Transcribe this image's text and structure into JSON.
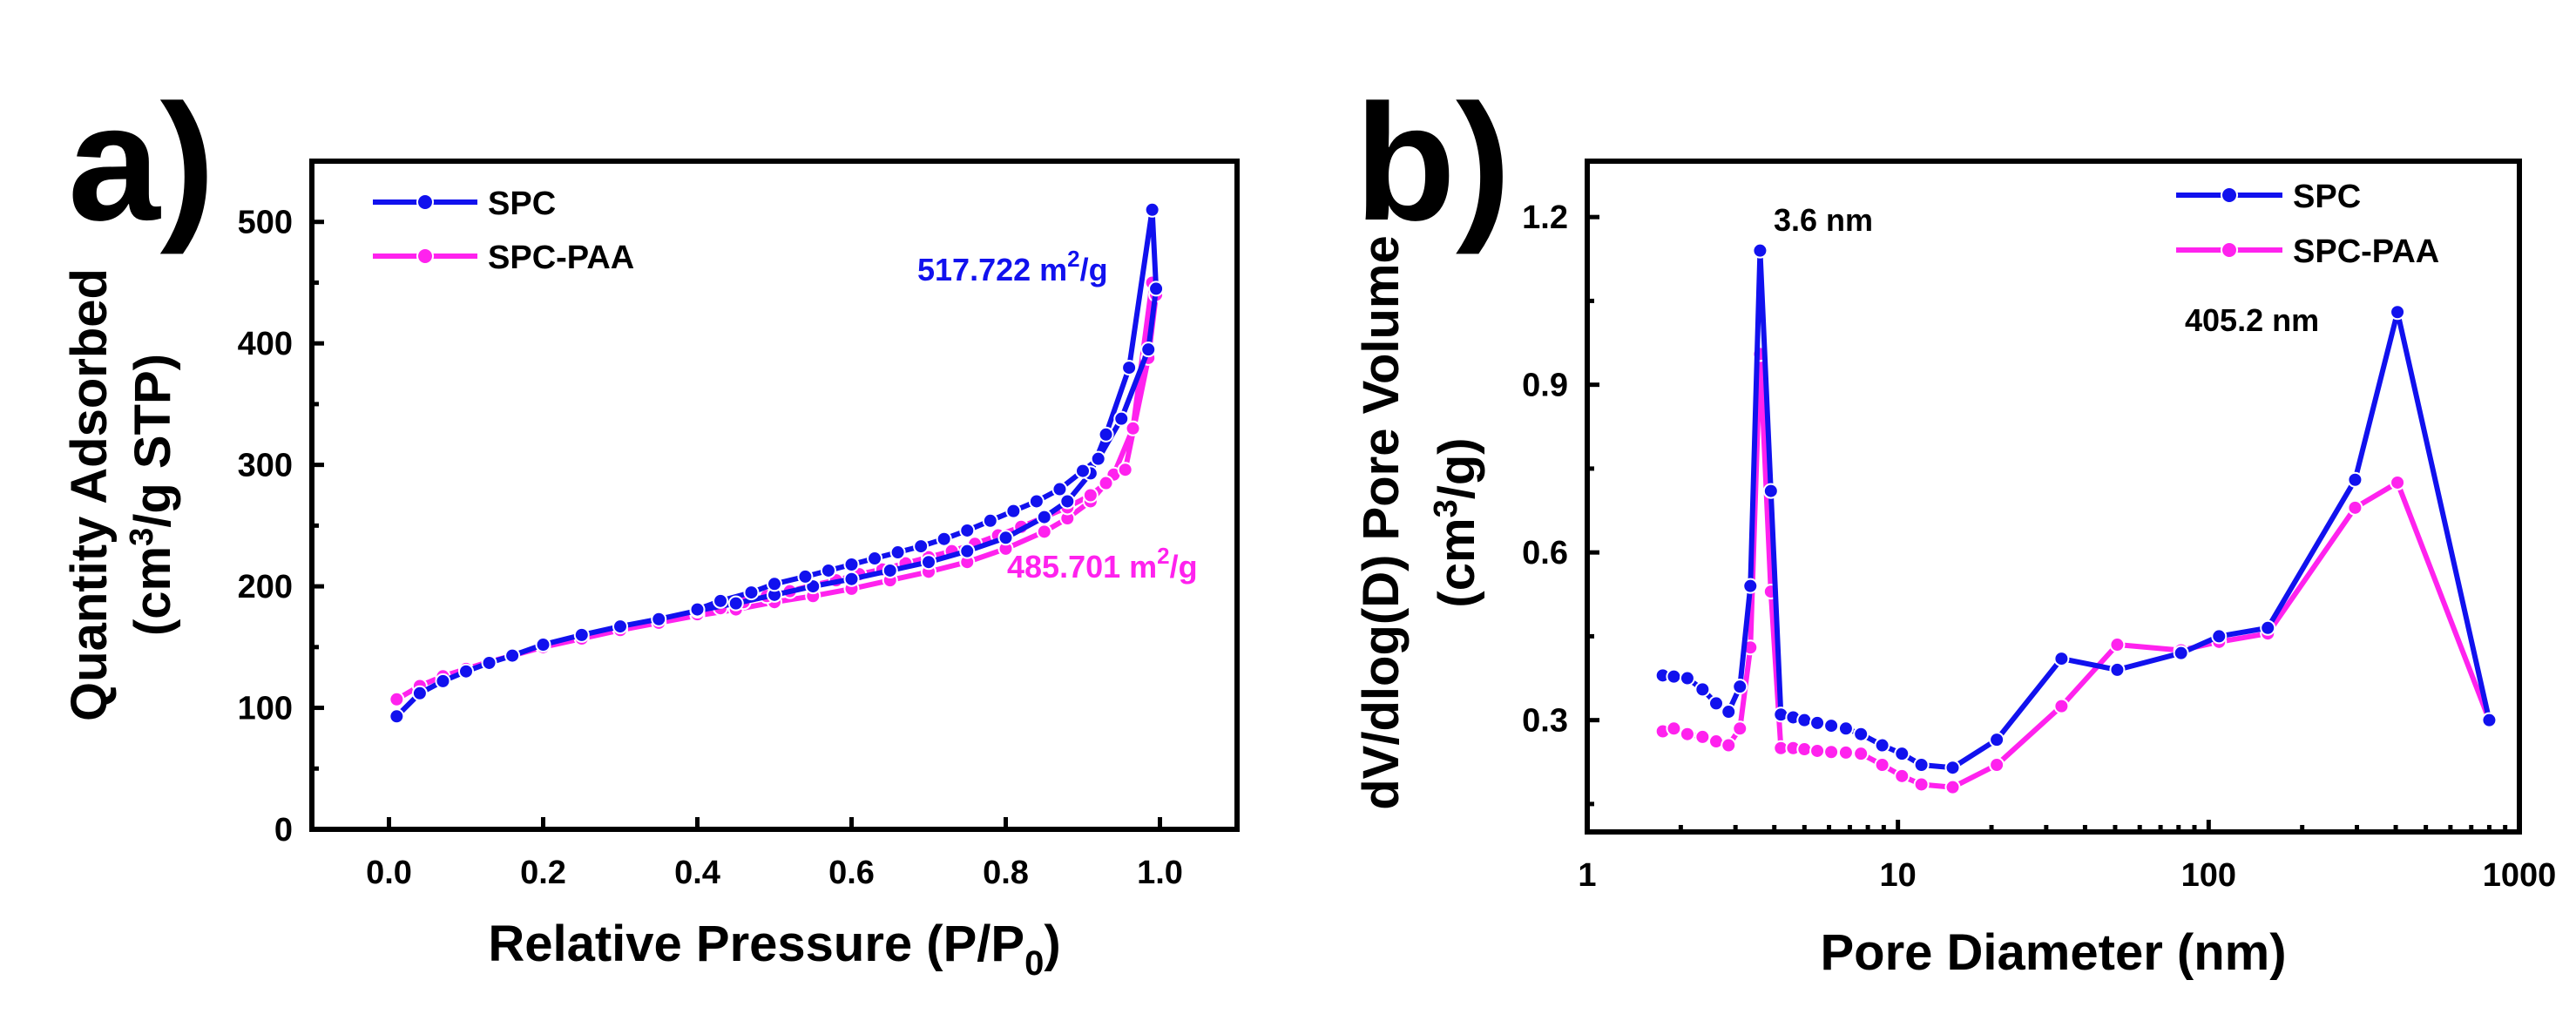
{
  "colors": {
    "spc": "#1111ee",
    "spc_paa": "#ff22ee",
    "axis": "#000000"
  },
  "chart_data": [
    {
      "id": "a",
      "panel_label": "a)",
      "type": "line",
      "title": "",
      "xlabel": {
        "main": "Relative Pressure (P/P",
        "sub": "0",
        "tail": ")"
      },
      "ylabel": {
        "line1": "Quantity Adsorbed",
        "line2_pre": "(cm",
        "line2_sup": "3",
        "line2_post": "/g STP)"
      },
      "xlim": [
        -0.1,
        1.1
      ],
      "ylim": [
        0,
        550
      ],
      "xticks": [
        0.0,
        0.2,
        0.4,
        0.6,
        0.8,
        1.0
      ],
      "xtick_labels": [
        "0.0",
        "0.2",
        "0.4",
        "0.6",
        "0.8",
        "1.0"
      ],
      "yticks": [
        0,
        100,
        200,
        300,
        400,
        500
      ],
      "ytick_labels": [
        "0",
        "100",
        "200",
        "300",
        "400",
        "500"
      ],
      "legend": [
        "SPC",
        "SPC-PAA"
      ],
      "annotations": [
        {
          "pre": "517.722 m",
          "sup": "2",
          "post": "/g",
          "series": "spc"
        },
        {
          "pre": "485.701 m",
          "sup": "2",
          "post": "/g",
          "series": "spc_paa"
        }
      ],
      "series": [
        {
          "name": "SPC",
          "color_key": "spc",
          "x": [
            0.01,
            0.04,
            0.07,
            0.1,
            0.13,
            0.16,
            0.2,
            0.25,
            0.3,
            0.35,
            0.4,
            0.45,
            0.5,
            0.55,
            0.6,
            0.65,
            0.7,
            0.75,
            0.8,
            0.85,
            0.88,
            0.91,
            0.93,
            0.96,
            0.99,
            0.995,
            0.985,
            0.95,
            0.92,
            0.9,
            0.87,
            0.84,
            0.81,
            0.78,
            0.75,
            0.72,
            0.69,
            0.66,
            0.63,
            0.6,
            0.57,
            0.54,
            0.5,
            0.47,
            0.43,
            0.4
          ],
          "y": [
            93,
            112,
            122,
            130,
            137,
            143,
            152,
            160,
            167,
            173,
            180,
            186,
            193,
            200,
            206,
            213,
            220,
            229,
            240,
            257,
            270,
            293,
            325,
            380,
            510,
            445,
            395,
            338,
            305,
            295,
            280,
            270,
            262,
            254,
            246,
            239,
            233,
            228,
            223,
            218,
            213,
            208,
            202,
            195,
            188,
            181
          ]
        },
        {
          "name": "SPC-PAA",
          "color_key": "spc_paa",
          "x": [
            0.01,
            0.04,
            0.07,
            0.1,
            0.13,
            0.16,
            0.2,
            0.25,
            0.3,
            0.35,
            0.4,
            0.45,
            0.5,
            0.55,
            0.6,
            0.65,
            0.7,
            0.75,
            0.8,
            0.85,
            0.88,
            0.91,
            0.94,
            0.965,
            0.99,
            0.995,
            0.985,
            0.955,
            0.93,
            0.91,
            0.88,
            0.85,
            0.82,
            0.79,
            0.76,
            0.73,
            0.7,
            0.67,
            0.64,
            0.61,
            0.58,
            0.55,
            0.52,
            0.49,
            0.46,
            0.43,
            0.4
          ],
          "y": [
            107,
            118,
            126,
            132,
            138,
            143,
            150,
            157,
            164,
            170,
            176,
            181,
            187,
            192,
            198,
            205,
            212,
            220,
            231,
            245,
            256,
            270,
            292,
            330,
            450,
            440,
            388,
            296,
            285,
            275,
            265,
            257,
            249,
            242,
            235,
            229,
            224,
            219,
            214,
            210,
            205,
            201,
            196,
            192,
            187,
            182,
            177
          ]
        }
      ]
    },
    {
      "id": "b",
      "panel_label": "b)",
      "type": "line",
      "title": "",
      "xscale": "log",
      "xlabel": {
        "main": "Pore Diameter (nm)"
      },
      "ylabel": {
        "line1": "dV/dlog(D) Pore Volume",
        "line2_pre": "(cm",
        "line2_sup": "3",
        "line2_post": "/g)"
      },
      "xlim": [
        1,
        1000
      ],
      "ylim": [
        0.1,
        1.3
      ],
      "xticks": [
        1,
        10,
        100,
        1000
      ],
      "xtick_labels": [
        "1",
        "10",
        "100",
        "1000"
      ],
      "yticks": [
        0.3,
        0.6,
        0.9,
        1.2
      ],
      "ytick_labels": [
        "0.3",
        "0.6",
        "0.9",
        "1.2"
      ],
      "legend": [
        "SPC",
        "SPC-PAA"
      ],
      "annotations": [
        {
          "text": "3.6 nm",
          "x": 3.6,
          "y": 1.14
        },
        {
          "text": "405.2 nm",
          "x": 405.2,
          "y": 1.03
        }
      ],
      "series": [
        {
          "name": "SPC",
          "color_key": "spc",
          "x": [
            1.75,
            1.9,
            2.1,
            2.35,
            2.6,
            2.85,
            3.1,
            3.35,
            3.6,
            3.9,
            4.2,
            4.6,
            5.0,
            5.5,
            6.1,
            6.8,
            7.6,
            8.9,
            10.3,
            11.9,
            15.0,
            20.8,
            33.6,
            50.8,
            81.5,
            108.0,
            155.0,
            296.0,
            405.2,
            800.0
          ],
          "y": [
            0.38,
            0.378,
            0.375,
            0.355,
            0.33,
            0.315,
            0.36,
            0.54,
            1.14,
            0.71,
            0.31,
            0.305,
            0.3,
            0.295,
            0.29,
            0.285,
            0.275,
            0.255,
            0.24,
            0.22,
            0.215,
            0.265,
            0.41,
            0.39,
            0.42,
            0.45,
            0.465,
            0.73,
            1.03,
            0.3
          ]
        },
        {
          "name": "SPC-PAA",
          "color_key": "spc_paa",
          "x": [
            1.75,
            1.9,
            2.1,
            2.35,
            2.6,
            2.85,
            3.1,
            3.35,
            3.6,
            3.9,
            4.2,
            4.6,
            5.0,
            5.5,
            6.1,
            6.8,
            7.6,
            8.9,
            10.3,
            11.9,
            15.0,
            20.8,
            33.6,
            50.8,
            81.5,
            108.0,
            155.0,
            296.0,
            405.2,
            800.0
          ],
          "y": [
            0.28,
            0.285,
            0.275,
            0.27,
            0.262,
            0.255,
            0.285,
            0.43,
            0.955,
            0.53,
            0.25,
            0.25,
            0.248,
            0.245,
            0.243,
            0.242,
            0.24,
            0.22,
            0.2,
            0.185,
            0.18,
            0.22,
            0.325,
            0.435,
            0.425,
            0.44,
            0.455,
            0.68,
            0.725,
            0.3
          ]
        }
      ]
    }
  ]
}
